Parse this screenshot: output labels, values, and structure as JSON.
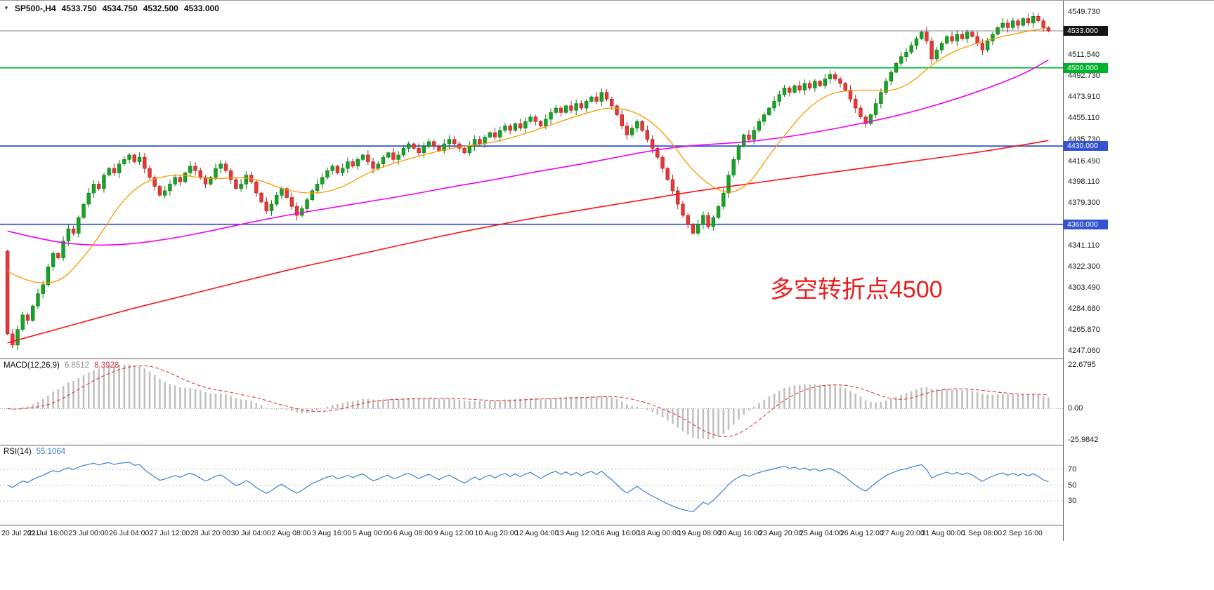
{
  "header": {
    "symbol": "SP500-,H4",
    "open": "4533.750",
    "high": "4534.750",
    "low": "4532.500",
    "close": "4533.000"
  },
  "macd_panel": {
    "label": "MACD(12,26,9)",
    "main_value": "6.8512",
    "signal_value": "8.3928"
  },
  "rsi_panel": {
    "label": "RSI(14)",
    "value": "55.1064"
  },
  "annotation": {
    "text": "多空转折点4500",
    "color": "#ea1c1c"
  },
  "chart_data": {
    "type": "candlestick",
    "symbol": "SP500-",
    "timeframe": "H4",
    "current_bar": {
      "open": 4533.75,
      "high": 4534.75,
      "low": 4532.5,
      "close": 4533.0
    },
    "y_axis": {
      "min": 4240,
      "max": 4560
    },
    "first_open": 4336,
    "closes": [
      4262,
      4252,
      4266,
      4279,
      4274,
      4287,
      4298,
      4306,
      4322,
      4334,
      4330,
      4345,
      4356,
      4352,
      4366,
      4378,
      4388,
      4396,
      4392,
      4404,
      4410,
      4406,
      4414,
      4418,
      4422,
      4416,
      4420,
      4410,
      4402,
      4394,
      4386,
      4390,
      4396,
      4402,
      4398,
      4406,
      4412,
      4408,
      4402,
      4396,
      4402,
      4410,
      4414,
      4408,
      4400,
      4392,
      4396,
      4404,
      4398,
      4388,
      4380,
      4372,
      4378,
      4386,
      4392,
      4384,
      4376,
      4368,
      4374,
      4382,
      4390,
      4396,
      4402,
      4408,
      4412,
      4406,
      4410,
      4416,
      4412,
      4418,
      4422,
      4416,
      4410,
      4414,
      4420,
      4424,
      4418,
      4422,
      4428,
      4432,
      4428,
      4424,
      4430,
      4434,
      4430,
      4426,
      4432,
      4436,
      4432,
      4428,
      4424,
      4430,
      4436,
      4432,
      4438,
      4442,
      4438,
      4444,
      4448,
      4444,
      4450,
      4446,
      4452,
      4456,
      4452,
      4448,
      4454,
      4460,
      4464,
      4460,
      4466,
      4462,
      4468,
      4464,
      4470,
      4474,
      4470,
      4478,
      4472,
      4466,
      4458,
      4448,
      4440,
      4446,
      4452,
      4444,
      4436,
      4428,
      4420,
      4410,
      4400,
      4390,
      4378,
      4368,
      4360,
      4352,
      4360,
      4368,
      4358,
      4366,
      4376,
      4388,
      4404,
      4418,
      4430,
      4440,
      4436,
      4444,
      4452,
      4458,
      4464,
      4470,
      4476,
      4482,
      4478,
      4484,
      4480,
      4486,
      4482,
      4488,
      4484,
      4490,
      4494,
      4490,
      4486,
      4480,
      4472,
      4464,
      4456,
      4450,
      4458,
      4468,
      4478,
      4488,
      4496,
      4504,
      4510,
      4514,
      4520,
      4526,
      4532,
      4524,
      4508,
      4516,
      4522,
      4528,
      4524,
      4530,
      4526,
      4532,
      4528,
      4522,
      4516,
      4524,
      4530,
      4536,
      4540,
      4536,
      4542,
      4538,
      4544,
      4540,
      4546,
      4542,
      4536,
      4533
    ],
    "ma_index": [
      0,
      8,
      16,
      24,
      32,
      40,
      48,
      56,
      64,
      72,
      80,
      88,
      96,
      104,
      112,
      120,
      128,
      136,
      144,
      152,
      160,
      168,
      176,
      184,
      192,
      200,
      205
    ],
    "ma_fast": {
      "name": "MA fast",
      "color": "#ff9800",
      "values": [
        4318,
        4298,
        4334,
        4392,
        4406,
        4400,
        4403,
        4388,
        4388,
        4409,
        4420,
        4429,
        4433,
        4444,
        4457,
        4467,
        4451,
        4400,
        4382,
        4435,
        4476,
        4481,
        4478,
        4511,
        4524,
        4532,
        4536
      ]
    },
    "ma_mid": {
      "name": "MA mid",
      "color": "#f000f0",
      "values": [
        4354,
        4345,
        4341,
        4342,
        4347,
        4354,
        4362,
        4369,
        4375,
        4381,
        4387,
        4394,
        4400,
        4407,
        4413,
        4420,
        4427,
        4431,
        4433,
        4437,
        4443,
        4450,
        4458,
        4468,
        4480,
        4494,
        4507
      ]
    },
    "ma_slow": {
      "name": "MA slow",
      "color": "#ff1111",
      "values": [
        4254,
        4264,
        4274,
        4284,
        4293,
        4302,
        4311,
        4320,
        4328,
        4336,
        4344,
        4352,
        4359,
        4366,
        4372,
        4378,
        4384,
        4390,
        4395,
        4400,
        4405,
        4410,
        4415,
        4420,
        4425,
        4431,
        4435
      ]
    },
    "hlines": [
      {
        "value": 4533.0,
        "label": "4533.000",
        "type": "current"
      },
      {
        "value": 4500.0,
        "label": "4500.000",
        "type": "green"
      },
      {
        "value": 4430.0,
        "label": "4430.000",
        "type": "blue"
      },
      {
        "value": 4360.0,
        "label": "4360.000",
        "type": "blue"
      }
    ],
    "price_ticks": [
      "4549.730",
      "4511.540",
      "4492.730",
      "4473.910",
      "4455.110",
      "4435.730",
      "4416.490",
      "4398.110",
      "4379.300",
      "4341.110",
      "4322.300",
      "4303.490",
      "4284.680",
      "4265.870",
      "4247.060"
    ],
    "time_labels": [
      "20 Jul 2021",
      "21 Jul 16:00",
      "23 Jul 00:00",
      "26 Jul 04:00",
      "27 Jul 12:00",
      "28 Jul 20:00",
      "30 Jul 04:00",
      "2 Aug 08:00",
      "3 Aug 16:00",
      "5 Aug 00:00",
      "6 Aug 08:00",
      "9 Aug 12:00",
      "10 Aug 20:00",
      "12 Aug 04:00",
      "13 Aug 12:00",
      "16 Aug 16:00",
      "18 Aug 00:00",
      "19 Aug 08:00",
      "20 Aug 16:00",
      "23 Aug 20:00",
      "25 Aug 04:00",
      "26 Aug 12:00",
      "27 Aug 20:00",
      "31 Aug 00:00",
      "1 Sep 08:00",
      "2 Sep 16:00"
    ],
    "macd": {
      "params": "12,26,9",
      "main": 6.8512,
      "signal": 8.3928,
      "axis": [
        "22.6795",
        "0.00",
        "-25.9842"
      ]
    },
    "rsi": {
      "period": 14,
      "value": 55.1064,
      "levels": [
        70,
        50,
        30
      ]
    },
    "colors": {
      "up": "#18a327",
      "up_border": "#0d7a14",
      "down": "#e83737",
      "down_border": "#a82222",
      "ma_fast": "#ff9800",
      "ma_mid": "#f000f0",
      "ma_slow": "#ff1111",
      "hline_green": "#00b32c",
      "hline_blue": "#3353d1",
      "price_line": "#8a8a8a",
      "macd_hist": "#c0c0c0",
      "macd_signal": "#e23b3b",
      "rsi_line": "#3b7fd4",
      "annotation": "#ea1c1c"
    }
  }
}
